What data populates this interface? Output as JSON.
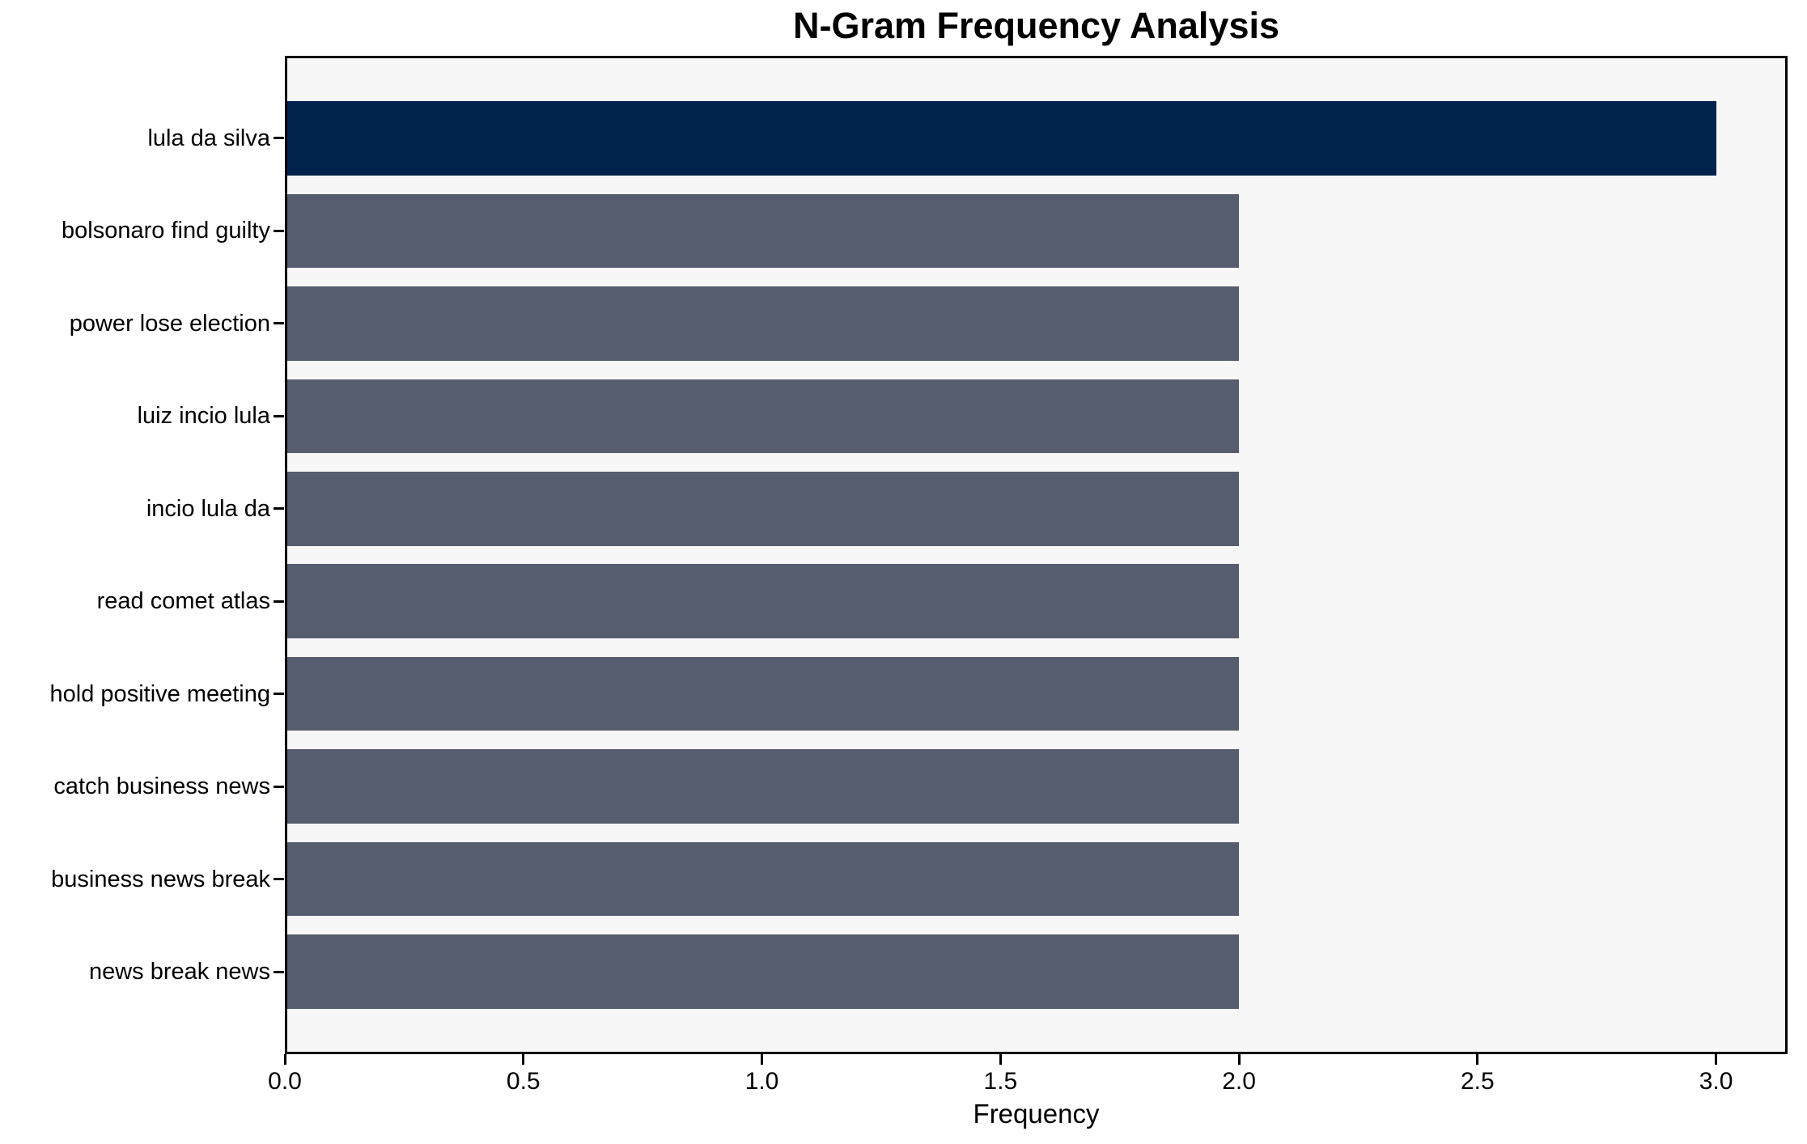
{
  "page": {
    "background": "#ffffff"
  },
  "chart_data": {
    "type": "bar",
    "orientation": "horizontal",
    "title": "N-Gram Frequency Analysis",
    "xlabel": "Frequency",
    "ylabel": "",
    "categories": [
      "lula da silva",
      "bolsonaro find guilty",
      "power lose election",
      "luiz incio lula",
      "incio lula da",
      "read comet atlas",
      "hold positive meeting",
      "catch business news",
      "business news break",
      "news break news"
    ],
    "values": [
      3,
      2,
      2,
      2,
      2,
      2,
      2,
      2,
      2,
      2
    ],
    "bar_colors": [
      "#02234c",
      "#565d6e",
      "#565d6e",
      "#565d6e",
      "#565d6e",
      "#565d6e",
      "#565d6e",
      "#565d6e",
      "#565d6e",
      "#565d6e"
    ],
    "highlight_color": "#02234c",
    "default_color": "#565d6e",
    "xtick_labels": [
      "0.0",
      "0.5",
      "1.0",
      "1.5",
      "2.0",
      "2.5",
      "3.0"
    ],
    "xtick_values": [
      0,
      0.5,
      1,
      1.5,
      2,
      2.5,
      3
    ],
    "xlim": [
      0,
      3.15
    ],
    "grid": false,
    "legend_position": null,
    "plot_background": "#f7f7f7",
    "axis_color": "#000000",
    "text_color": "#000000"
  }
}
